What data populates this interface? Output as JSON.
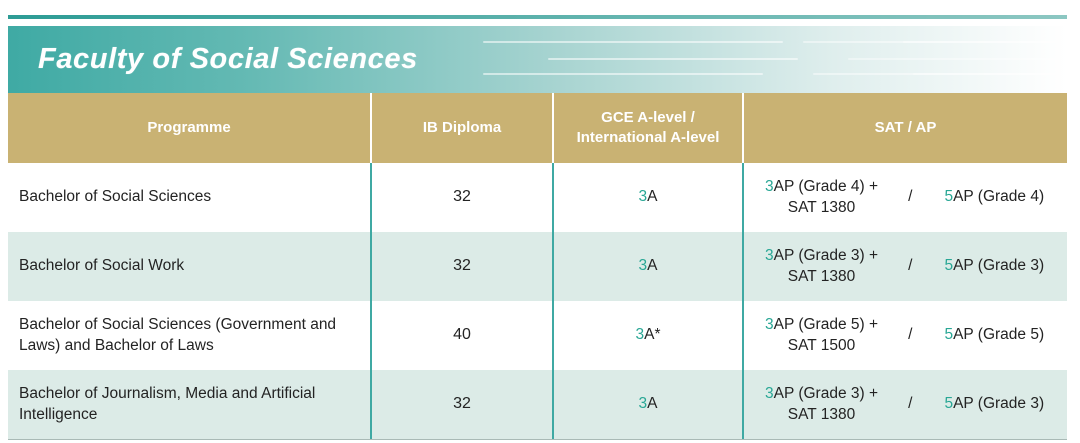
{
  "colors": {
    "teal_banner": "#3faaa4",
    "teal_dark": "#2d9c95",
    "gold_header": "#c9b273",
    "row_alt": "#dcebe7",
    "divider_teal": "#3fa9a3",
    "accent_teal": "#29a795",
    "text_dark": "#232323"
  },
  "banner": {
    "title": "Faculty of Social Sciences"
  },
  "table": {
    "headers": {
      "programme": "Programme",
      "ib_diploma": "IB Diploma",
      "gce_line1": "GCE A-level /",
      "gce_line2": "International A-level",
      "sat_ap": "SAT / AP"
    },
    "rows": [
      {
        "programme": "Bachelor of Social Sciences",
        "ib_diploma": "32",
        "gce_prefix": "3",
        "gce_text": "A",
        "sat_prefix": "3",
        "sat_line1": "AP (Grade 4) +",
        "sat_line2": "SAT 1380",
        "separator": "/",
        "ap_prefix": "5",
        "ap_text": "AP (Grade 4)"
      },
      {
        "programme": "Bachelor of Social Work",
        "ib_diploma": "32",
        "gce_prefix": "3",
        "gce_text": "A",
        "sat_prefix": "3",
        "sat_line1": "AP (Grade 3) +",
        "sat_line2": "SAT 1380",
        "separator": "/",
        "ap_prefix": "5",
        "ap_text": "AP (Grade 3)"
      },
      {
        "programme": "Bachelor of Social Sciences (Government and Laws) and Bachelor of Laws",
        "ib_diploma": "40",
        "gce_prefix": "3",
        "gce_text": "A*",
        "sat_prefix": "3",
        "sat_line1": "AP (Grade 5) +",
        "sat_line2": "SAT 1500",
        "separator": "/",
        "ap_prefix": "5",
        "ap_text": "AP (Grade 5)"
      },
      {
        "programme": "Bachelor of Journalism, Media and Artificial Intelligence",
        "ib_diploma": "32",
        "gce_prefix": "3",
        "gce_text": "A",
        "sat_prefix": "3",
        "sat_line1": "AP (Grade 3) +",
        "sat_line2": "SAT 1380",
        "separator": "/",
        "ap_prefix": "5",
        "ap_text": "AP (Grade 3)"
      }
    ]
  }
}
